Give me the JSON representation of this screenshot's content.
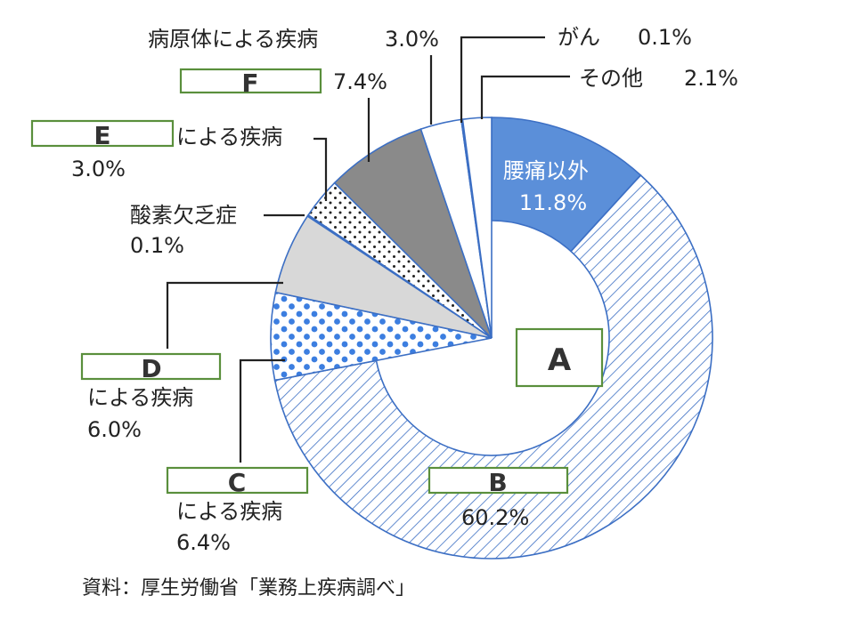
{
  "chart_data": {
    "type": "pie",
    "style": "donut",
    "start_angle_deg": 0,
    "direction": "clockwise",
    "source": "資料：厚生労働省「業務上疾病調べ」",
    "slices": [
      {
        "id": "lumbago_other",
        "value": 11.8,
        "label": "腰痛以外",
        "value_text": "11.8%",
        "fill": "solid",
        "color": "#5b8fd9"
      },
      {
        "id": "b",
        "value": 60.2,
        "label": "B",
        "value_text": "60.2%",
        "fill": "hatch",
        "color": "#3c6fc4"
      },
      {
        "id": "c",
        "value": 6.4,
        "label": "C",
        "suffix": "による疾病",
        "value_text": "6.4%",
        "fill": "dots",
        "color": "#3c7ee0"
      },
      {
        "id": "d",
        "value": 6.0,
        "label": "D",
        "suffix": "による疾病",
        "value_text": "6.0%",
        "fill": "light-gray",
        "color": "#d8d8d8"
      },
      {
        "id": "oxygen",
        "value": 0.1,
        "label": "酸素欠乏症",
        "value_text": "0.1%",
        "fill": "white",
        "color": "#ffffff"
      },
      {
        "id": "e",
        "value": 3.0,
        "label": "E",
        "suffix": "による疾病",
        "value_text": "3.0%",
        "fill": "small-dots",
        "color": "#333333"
      },
      {
        "id": "f",
        "value": 7.4,
        "label": "F",
        "value_text": "7.4%",
        "fill": "dark-gray",
        "color": "#8a8a8a"
      },
      {
        "id": "pathogen",
        "value": 3.0,
        "label": "病原体による疾病",
        "value_text": "3.0%",
        "fill": "white",
        "color": "#ffffff"
      },
      {
        "id": "cancer",
        "value": 0.1,
        "label": "がん",
        "value_text": "0.1%",
        "fill": "white",
        "color": "#ffffff"
      },
      {
        "id": "other",
        "value": 2.1,
        "label": "その他",
        "value_text": "2.1%",
        "fill": "white",
        "color": "#ffffff"
      }
    ],
    "center_box_label": "A",
    "colors": {
      "outline": "#3c6fc4",
      "box_border": "#5a8f3c",
      "text": "#222222"
    }
  }
}
